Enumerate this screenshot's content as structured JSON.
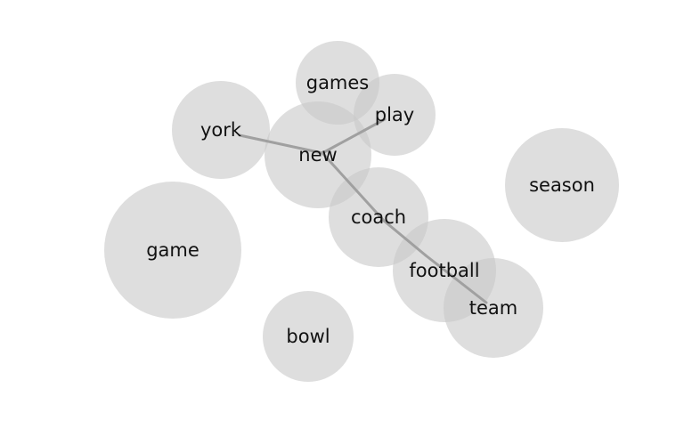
{
  "topic_words": [
    {
      "id": "games",
      "label": "games"
    },
    {
      "id": "play",
      "label": "play"
    },
    {
      "id": "york",
      "label": "york"
    },
    {
      "id": "new",
      "label": "new"
    },
    {
      "id": "season",
      "label": "season"
    },
    {
      "id": "coach",
      "label": "coach"
    },
    {
      "id": "game",
      "label": "game"
    },
    {
      "id": "football",
      "label": "football"
    },
    {
      "id": "team",
      "label": "team"
    },
    {
      "id": "bowl",
      "label": "bowl"
    }
  ],
  "links": [
    {
      "from": "york",
      "to": "new"
    },
    {
      "from": "new",
      "to": "play"
    },
    {
      "from": "new",
      "to": "coach"
    },
    {
      "from": "coach",
      "to": "football"
    },
    {
      "from": "football",
      "to": "team"
    }
  ],
  "colors": {
    "bubble": "#c8c8c8",
    "link": "#a0a0a0",
    "text": "#111111",
    "background": "#ffffff"
  }
}
